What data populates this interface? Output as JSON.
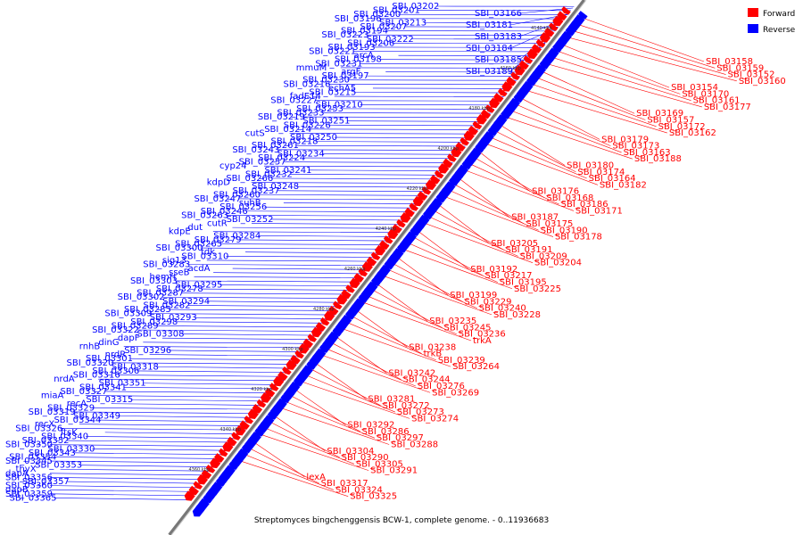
{
  "caption": "Streptomyces bingchenggensis BCW-1, complete genome. - 0..11936683",
  "legend": [
    {
      "label": "Forward",
      "color": "#ff0000"
    },
    {
      "label": "Reverse",
      "color": "#0000ff"
    }
  ],
  "colors": {
    "forward": "#ff0000",
    "reverse": "#0000ff",
    "backbone": "#777777"
  },
  "ticks": [
    "4140 kbp",
    "4160 kbp",
    "4180 kbp",
    "4200 kbp",
    "4220 kbp",
    "4240 kbp",
    "4260 kbp",
    "4280 kbp",
    "4300 kbp",
    "4320 kbp",
    "4340 kbp",
    "4360 kbp"
  ],
  "reverse_labels": [
    "SBI_03202",
    "SBI_03201",
    "SBI_03200",
    "SBI_03196",
    "SBI_03213",
    "SBI_03207",
    "SBI_03194",
    "SBI_03223",
    "SBI_03222",
    "SBI_03206",
    "SBI_03193",
    "SBI_03221",
    "arcA",
    "SBI_03198",
    "SBI_03231",
    "mmuM",
    "argF",
    "SBI_03197",
    "SBI_03230",
    "SBI_03216",
    "echA5",
    "SBI_03215",
    "fadE14",
    "SBI_03227",
    "SBI_03210",
    "SBI_03253",
    "SBI_03233",
    "SBI_03219",
    "SBI_03251",
    "SBI_03226",
    "SBI_03214",
    "cutS",
    "SBI_03250",
    "SBI_03218",
    "SBI_03261",
    "SBI_03243",
    "SBI_03234",
    "SBI_03224",
    "SBI_03257",
    "cyp24",
    "SBI_03241",
    "SBI_03232",
    "SBI_03266",
    "kdpD",
    "SBI_03248",
    "SBI_03237",
    "SBI_03260",
    "SBI_03247",
    "suhB",
    "SBI_03256",
    "SBI_03246",
    "SBI_03263",
    "SBI_03252",
    "cutR",
    "dut",
    "kdpE",
    "SBI_03284",
    "SBI_03279",
    "SBI_03265",
    "SBI_03300",
    "tdk",
    "SBI_03310",
    "sig13",
    "SBI_03283",
    "acdA",
    "sseB",
    "hemH",
    "SBI_03303",
    "SBI_03295",
    "SBI_03278",
    "SBI_03287",
    "SBI_03302",
    "SBI_03294",
    "SBI_03282",
    "SBI_03285",
    "SBI_03309",
    "SBI_03293",
    "SBI_03298",
    "SBI_03289",
    "SBI_03322",
    "SBI_03308",
    "dapF",
    "dinG",
    "rnhB",
    "SBI_03296",
    "nrdR",
    "SBI_03301",
    "SBI_03320",
    "SBI_03318",
    "SBI_03306",
    "SBI_03316",
    "nrdA",
    "SBI_03351",
    "SBI_03341",
    "SBI_03327",
    "miaA",
    "SBI_03315",
    "recA",
    "SBI_03329",
    "SBI_03319",
    "SBI_03349",
    "SBI_03344",
    "recX",
    "SBI_03326",
    "ftsK",
    "SBI_03340",
    "SBI_03352",
    "SBI_03350",
    "SBI_03330",
    "SBI_03343",
    "SBI_03354",
    "SBI_03345",
    "SBI_03353",
    "thyX",
    "dapA",
    "SBI_03356",
    "SBI_03357",
    "SBI_03360",
    "dapB",
    "SBI_03359",
    "SBI_03365",
    "SBI_03166",
    "SBI_03181",
    "SBI_03183",
    "SBI_03184",
    "SBI_03185",
    "SBI_03189"
  ],
  "forward_labels": [
    "SBI_03158",
    "SBI_03159",
    "SBI_03152",
    "SBI_03160",
    "SBI_03154",
    "SBI_03170",
    "SBI_03161",
    "SBI_03177",
    "SBI_03169",
    "SBI_03157",
    "SBI_03172",
    "SBI_03162",
    "SBI_03179",
    "SBI_03173",
    "SBI_03163",
    "SBI_03188",
    "SBI_03180",
    "SBI_03174",
    "SBI_03164",
    "SBI_03182",
    "SBI_03176",
    "SBI_03168",
    "SBI_03186",
    "SBI_03171",
    "SBI_03187",
    "SBI_03175",
    "SBI_03190",
    "SBI_03178",
    "SBI_03205",
    "SBI_03191",
    "SBI_03209",
    "SBI_03204",
    "SBI_03192",
    "SBI_03217",
    "SBI_03195",
    "SBI_03225",
    "SBI_03199",
    "SBI_03229",
    "SBI_03240",
    "SBI_03228",
    "SBI_03235",
    "SBI_03245",
    "SBI_03236",
    "trkA",
    "SBI_03238",
    "trkB",
    "SBI_03239",
    "SBI_03264",
    "SBI_03242",
    "SBI_03244",
    "SBI_03276",
    "SBI_03269",
    "SBI_03281",
    "SBI_03272",
    "SBI_03273",
    "SBI_03274",
    "SBI_03292",
    "SBI_03286",
    "SBI_03297",
    "SBI_03288",
    "SBI_03304",
    "SBI_03290",
    "SBI_03305",
    "SBI_03291",
    "lexA",
    "SBI_03317",
    "SBI_03324",
    "SBI_03325"
  ]
}
